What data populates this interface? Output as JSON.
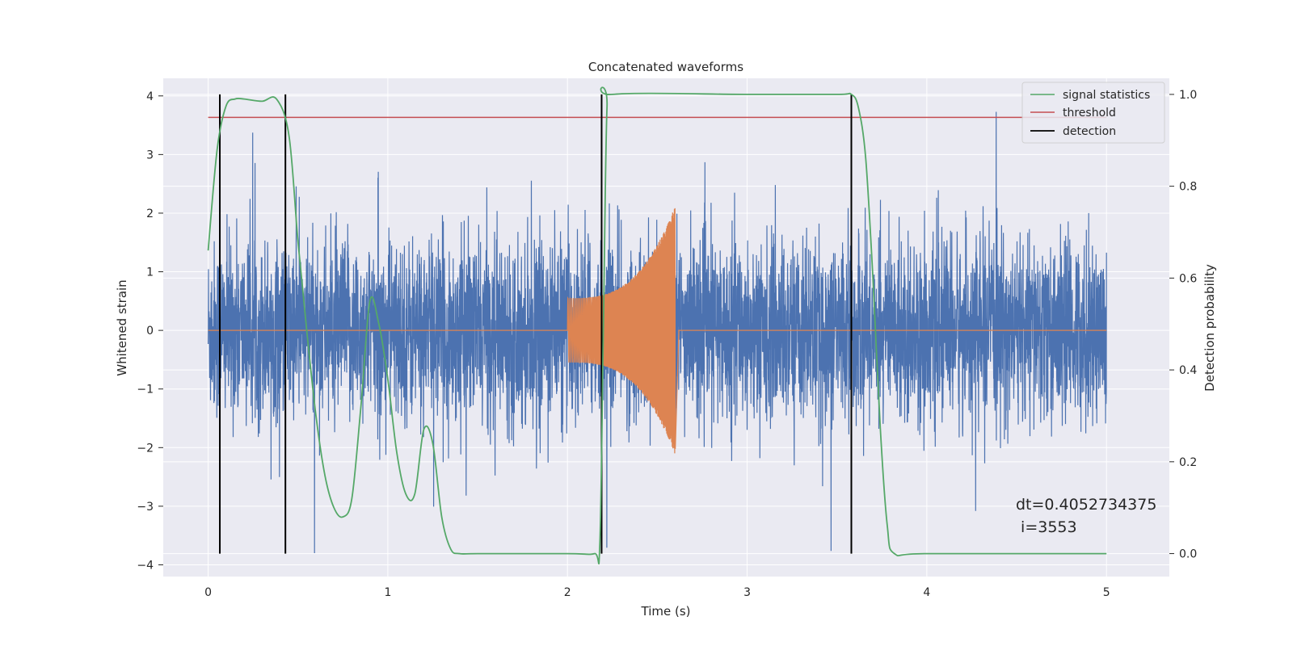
{
  "chart_data": {
    "type": "line",
    "title": "Concatenated waveforms",
    "xlabel": "Time (s)",
    "ylabel": "Whitened strain",
    "y2label": "Detection probability",
    "xlim": [
      -0.25,
      5.35
    ],
    "ylim": [
      -4.2,
      4.3
    ],
    "y2lim": [
      -0.05,
      1.035
    ],
    "xticks": [
      0,
      1,
      2,
      3,
      4,
      5
    ],
    "yticks": [
      -4,
      -3,
      -2,
      -1,
      0,
      1,
      2,
      3,
      4
    ],
    "y2ticks": [
      0.0,
      0.2,
      0.4,
      0.6,
      0.8,
      1.0
    ],
    "xtick_labels": [
      "0",
      "1",
      "2",
      "3",
      "4",
      "5"
    ],
    "ytick_labels": [
      "−4",
      "−3",
      "−2",
      "−1",
      "0",
      "1",
      "2",
      "3",
      "4"
    ],
    "y2tick_labels": [
      "0.0",
      "0.2",
      "0.4",
      "0.6",
      "0.8",
      "1.0"
    ],
    "grid": true,
    "legend_position": "top-right",
    "legend": [
      "signal statistics",
      "threshold",
      "detection"
    ],
    "series": [
      {
        "name": "whitened strain",
        "color": "#4c72b0",
        "axis": "left",
        "description_values": {
          "x_range": [
            0,
            5
          ],
          "typical_amplitude": 1.0,
          "peak_min": -3.8,
          "peak_max": 3.95
        }
      },
      {
        "name": "injected waveform",
        "color": "#dd8452",
        "axis": "left",
        "x_range": [
          2.0,
          2.6
        ],
        "peak_max": 2.6,
        "peak_min": -1.5
      },
      {
        "name": "signal statistics",
        "color": "#55a868",
        "axis": "right",
        "x": [
          0,
          0.05,
          0.1,
          0.15,
          0.2,
          0.3,
          0.38,
          0.45,
          0.5,
          0.55,
          0.6,
          0.65,
          0.7,
          0.75,
          0.8,
          0.85,
          0.9,
          0.95,
          1.0,
          1.05,
          1.1,
          1.15,
          1.2,
          1.25,
          1.3,
          1.35,
          1.4,
          1.5,
          2.0,
          2.15,
          2.18,
          2.2,
          2.22,
          2.25,
          3.0,
          3.5,
          3.58,
          3.62,
          3.66,
          3.7,
          3.74,
          3.78,
          3.82,
          4.0,
          5.0
        ],
        "y": [
          0.66,
          0.88,
          0.975,
          0.99,
          0.99,
          0.985,
          0.99,
          0.91,
          0.68,
          0.48,
          0.3,
          0.17,
          0.1,
          0.08,
          0.12,
          0.32,
          0.55,
          0.5,
          0.38,
          0.22,
          0.13,
          0.13,
          0.27,
          0.24,
          0.08,
          0.01,
          0.0,
          0.0,
          0.0,
          0.0,
          0.02,
          0.5,
          0.97,
          1.0,
          1.0,
          1.0,
          1.0,
          0.97,
          0.86,
          0.6,
          0.28,
          0.06,
          0.0,
          0.0,
          0.0
        ]
      },
      {
        "name": "threshold",
        "color": "#c44e52",
        "axis": "right",
        "x": [
          0,
          5
        ],
        "y": [
          0.95,
          0.95
        ]
      },
      {
        "name": "detection",
        "color": "#000000",
        "axis": "right",
        "type": "vlines",
        "x": [
          0.065,
          0.43,
          2.19,
          3.58
        ],
        "y_range": [
          0.0,
          1.0
        ]
      }
    ],
    "annotation": {
      "line1": "dt=0.4052734375",
      "line2": " i=3553"
    }
  }
}
